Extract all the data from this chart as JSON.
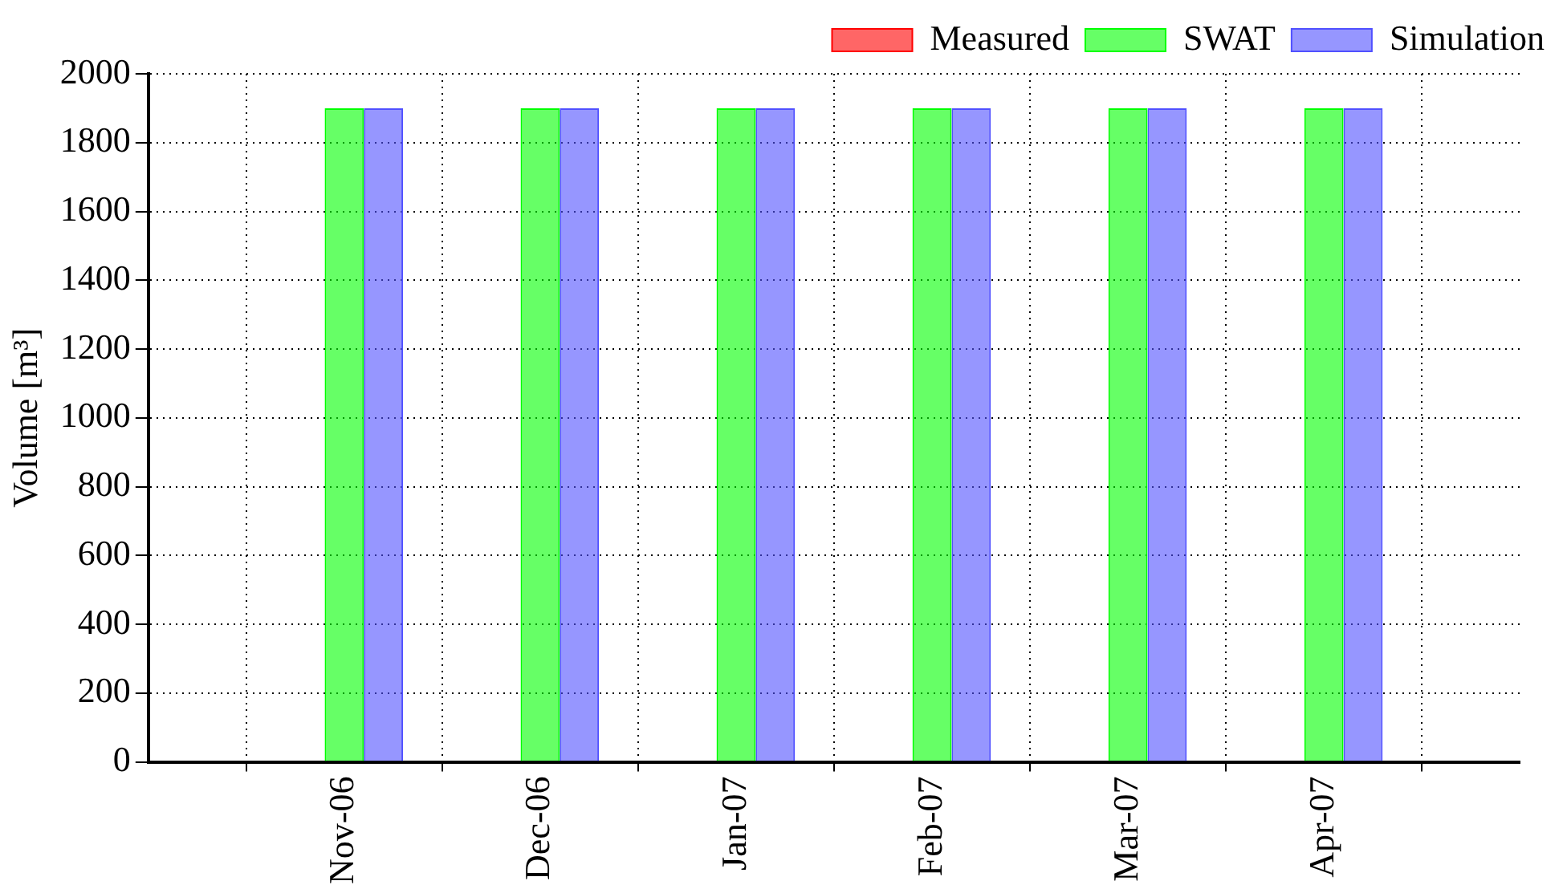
{
  "chart_data": {
    "type": "bar",
    "ylabel": "Volume [m³]",
    "categories": [
      null,
      "Nov-06",
      "Dec-06",
      "Jan-07",
      "Feb-07",
      "Mar-07",
      "Apr-07",
      null
    ],
    "series": [
      {
        "name": "Measured",
        "color": "#ff0000",
        "values": [
          null,
          null,
          null,
          null,
          null,
          null,
          null,
          null
        ]
      },
      {
        "name": "SWAT",
        "color": "#00ff00",
        "values": [
          null,
          1900,
          1900,
          1900,
          1900,
          1900,
          1900,
          null
        ]
      },
      {
        "name": "Simulation",
        "color": "#5050ff",
        "values": [
          null,
          1900,
          1900,
          1900,
          1900,
          1900,
          1900,
          null
        ]
      }
    ],
    "ylim": [
      0,
      2000
    ],
    "yticks": [
      0,
      200,
      400,
      600,
      800,
      1000,
      1200,
      1400,
      1600,
      1800,
      2000
    ],
    "grid": true,
    "legend": "top right"
  }
}
